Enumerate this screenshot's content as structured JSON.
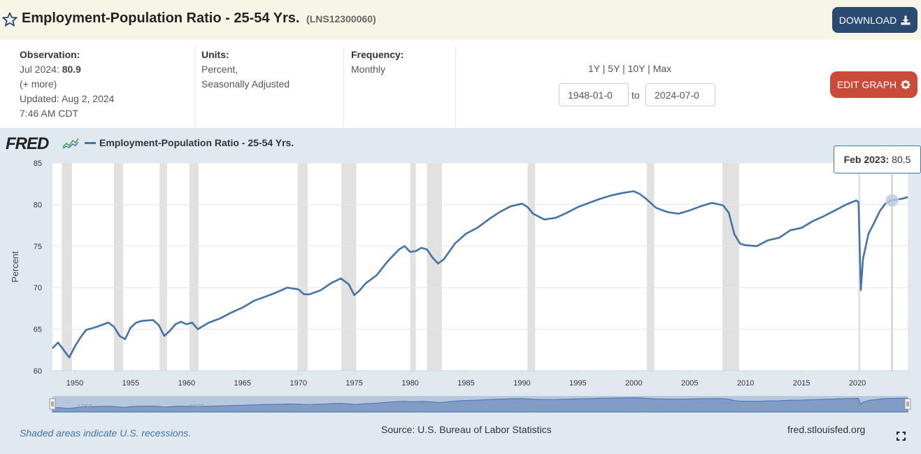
{
  "header": {
    "title": "Employment-Population Ratio - 25-54 Yrs.",
    "series_id": "(LNS12300060)",
    "download_label": "DOWNLOAD"
  },
  "observation": {
    "label": "Observation:",
    "date": "Jul 2024:",
    "value": "80.9",
    "more": "(+ more)",
    "updated": "Updated: Aug 2, 2024",
    "time": "7:46 AM CDT"
  },
  "units": {
    "label": "Units:",
    "line1": "Percent,",
    "line2": "Seasonally Adjusted"
  },
  "frequency": {
    "label": "Frequency:",
    "value": "Monthly"
  },
  "range": {
    "buttons": [
      "1Y",
      "5Y",
      "10Y",
      "Max"
    ],
    "separator": "|",
    "start": "1948-01-0",
    "end": "2024-07-0",
    "to_label": "to"
  },
  "edit_label": "EDIT GRAPH",
  "logo_text": "FRED",
  "tooltip": {
    "date": "Feb 2023:",
    "value": "80.5"
  },
  "footer": {
    "note": "Shaded areas indicate U.S. recessions.",
    "source": "Source: U.S. Bureau of Labor Statistics",
    "site": "fred.stlouisfed.org"
  },
  "icons": {
    "star": "star-outline-icon",
    "download": "download-icon",
    "edit": "gear-icon",
    "logo_chart": "mini-chart-icon",
    "fullscreen": "fullscreen-icon"
  },
  "colors": {
    "series": "#4572a7",
    "recession": "#e1e1e1",
    "download_btn": "#2b4a72",
    "edit_btn": "#c94c3a",
    "header_bg": "#f6f5e6",
    "graph_bg": "#e1e9f0"
  },
  "chart_data": {
    "type": "line",
    "title": "",
    "xlabel": "",
    "ylabel": "Percent",
    "ylim": [
      60,
      85
    ],
    "xlim": [
      1948.0,
      2024.5
    ],
    "yticks": [
      60,
      65,
      70,
      75,
      80,
      85
    ],
    "xticks": [
      1950,
      1955,
      1960,
      1965,
      1970,
      1975,
      1980,
      1985,
      1990,
      1995,
      2000,
      2005,
      2010,
      2015,
      2020
    ],
    "grid": "horizontal",
    "legend": "top-left",
    "series": [
      {
        "name": "Employment-Population Ratio - 25-54 Yrs.",
        "x": [
          1948.0,
          1948.5,
          1949.0,
          1949.5,
          1950.0,
          1950.5,
          1951.0,
          1952.0,
          1953.0,
          1953.5,
          1954.0,
          1954.5,
          1955.0,
          1955.5,
          1956.0,
          1957.0,
          1957.5,
          1958.0,
          1958.5,
          1959.0,
          1959.5,
          1960.0,
          1960.5,
          1961.0,
          1961.5,
          1962.0,
          1963.0,
          1964.0,
          1965.0,
          1966.0,
          1967.0,
          1968.0,
          1969.0,
          1970.0,
          1970.5,
          1971.0,
          1972.0,
          1973.0,
          1973.8,
          1974.5,
          1975.0,
          1975.5,
          1976.0,
          1977.0,
          1978.0,
          1979.0,
          1979.5,
          1980.0,
          1980.5,
          1981.0,
          1981.5,
          1982.0,
          1982.5,
          1983.0,
          1984.0,
          1985.0,
          1986.0,
          1987.0,
          1988.0,
          1989.0,
          1990.0,
          1990.5,
          1991.0,
          1992.0,
          1993.0,
          1994.0,
          1995.0,
          1996.0,
          1997.0,
          1998.0,
          1999.0,
          2000.0,
          2000.5,
          2001.0,
          2002.0,
          2003.0,
          2004.0,
          2005.0,
          2006.0,
          2007.0,
          2008.0,
          2008.5,
          2009.0,
          2009.5,
          2010.0,
          2011.0,
          2012.0,
          2013.0,
          2014.0,
          2015.0,
          2016.0,
          2017.0,
          2018.0,
          2019.0,
          2019.9,
          2020.1,
          2020.3,
          2020.5,
          2021.0,
          2021.5,
          2022.0,
          2022.5,
          2023.0,
          2023.5,
          2024.0,
          2024.5
        ],
        "values": [
          62.7,
          63.4,
          62.5,
          61.6,
          62.9,
          64.0,
          64.9,
          65.3,
          65.8,
          65.3,
          64.2,
          63.8,
          65.2,
          65.8,
          66.0,
          66.1,
          65.5,
          64.2,
          64.8,
          65.6,
          65.9,
          65.6,
          65.8,
          65.0,
          65.4,
          65.8,
          66.3,
          67.0,
          67.6,
          68.4,
          68.9,
          69.4,
          70.0,
          69.8,
          69.2,
          69.2,
          69.7,
          70.6,
          71.1,
          70.4,
          69.1,
          69.7,
          70.5,
          71.5,
          73.2,
          74.6,
          75.0,
          74.3,
          74.4,
          74.8,
          74.6,
          73.6,
          72.9,
          73.4,
          75.3,
          76.5,
          77.2,
          78.2,
          79.1,
          79.8,
          80.1,
          79.7,
          78.9,
          78.2,
          78.4,
          79.0,
          79.7,
          80.2,
          80.7,
          81.1,
          81.4,
          81.6,
          81.3,
          80.8,
          79.6,
          79.1,
          78.9,
          79.3,
          79.8,
          80.2,
          79.9,
          79.0,
          76.4,
          75.3,
          75.1,
          75.0,
          75.7,
          76.0,
          76.9,
          77.2,
          78.0,
          78.6,
          79.3,
          80.0,
          80.5,
          80.3,
          69.7,
          73.5,
          76.5,
          77.8,
          79.2,
          80.1,
          80.5,
          80.6,
          80.7,
          80.9
        ]
      }
    ],
    "recessions": [
      [
        1948.83,
        1949.75
      ],
      [
        1953.5,
        1954.33
      ],
      [
        1957.58,
        1958.25
      ],
      [
        1960.25,
        1961.08
      ],
      [
        1969.92,
        1970.83
      ],
      [
        1973.83,
        1975.17
      ],
      [
        1980.0,
        1980.5
      ],
      [
        1981.5,
        1982.83
      ],
      [
        1990.5,
        1991.17
      ],
      [
        2001.17,
        2001.83
      ],
      [
        2007.92,
        2009.42
      ],
      [
        2020.08,
        2020.25
      ]
    ],
    "navigator_ticks": [
      1950,
      1960,
      1970,
      1980,
      1990,
      2000,
      2010,
      2020
    ]
  }
}
